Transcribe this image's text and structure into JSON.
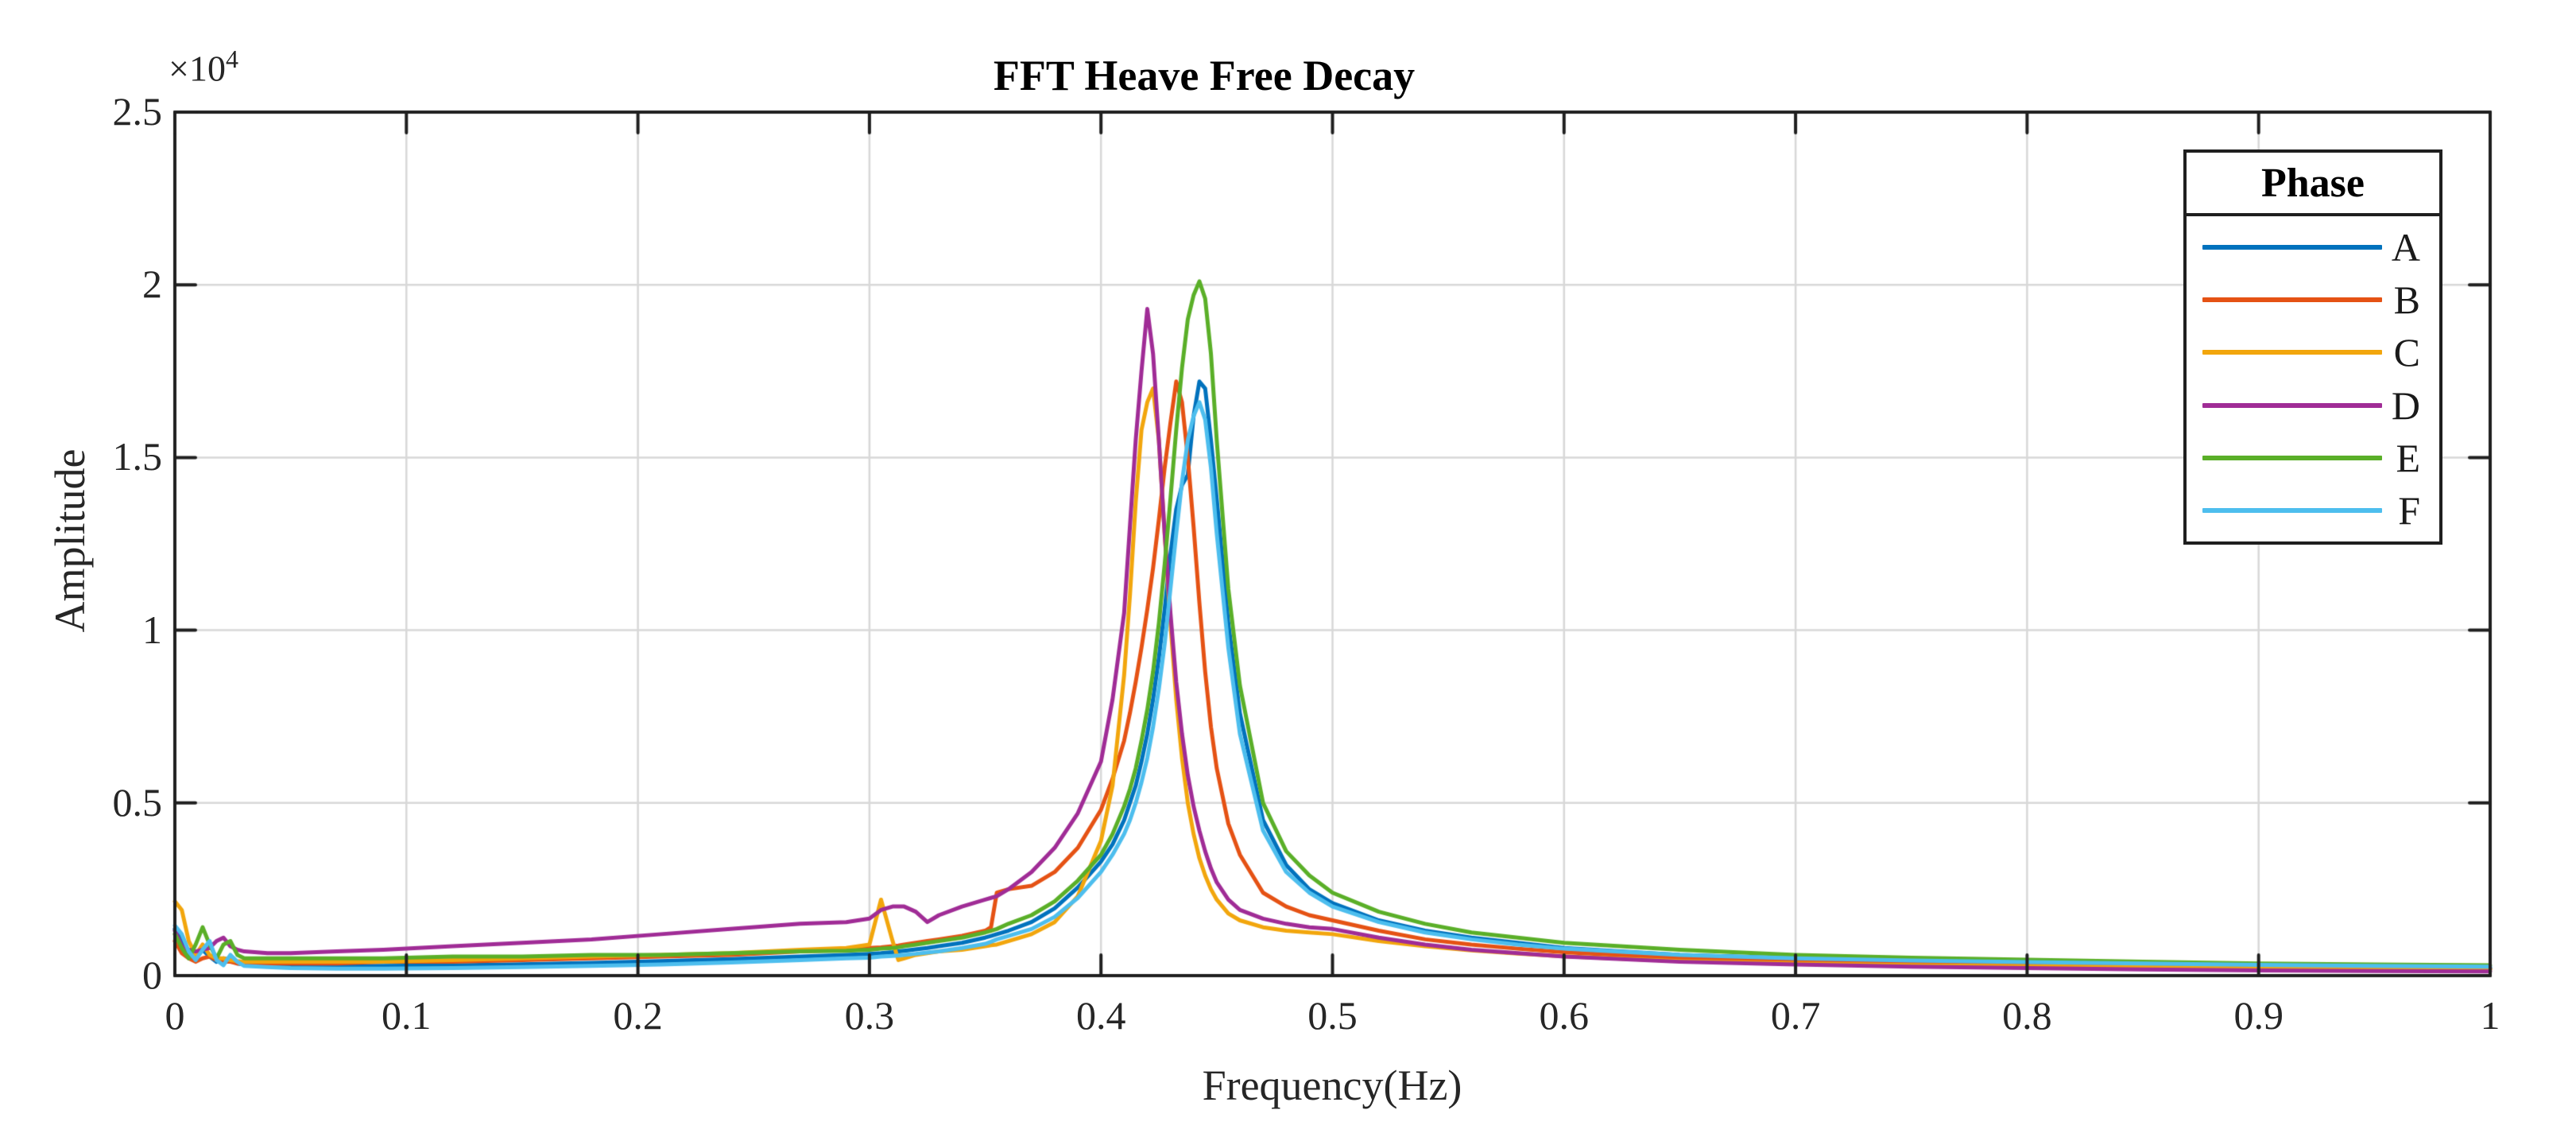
{
  "chart": {
    "title": "FFT Heave Free Decay",
    "xlabel": "Frequency(Hz)",
    "ylabel": "Amplitude",
    "y_exponent_base": "×10",
    "y_exponent_power": "4",
    "legend": {
      "title": "Phase"
    }
  },
  "chart_data": {
    "type": "line",
    "title": "FFT Heave Free Decay",
    "xlabel": "Frequency(Hz)",
    "ylabel": "Amplitude",
    "xlim": [
      0,
      1
    ],
    "ylim": [
      0,
      2.5
    ],
    "y_unit_multiplier": 10000,
    "y_multiplier_label": "×10⁴",
    "grid": true,
    "grid_color": "#d8d8d8",
    "axis_color": "#1f1f1f",
    "legend_position": "upper right",
    "legend_title": "Phase",
    "x_ticks": [
      0,
      0.1,
      0.2,
      0.3,
      0.4,
      0.5,
      0.6,
      0.7,
      0.8,
      0.9,
      1
    ],
    "x_tick_labels": [
      "0",
      "0.1",
      "0.2",
      "0.3",
      "0.4",
      "0.5",
      "0.6",
      "0.7",
      "0.8",
      "0.9",
      "1"
    ],
    "y_ticks": [
      0,
      0.5,
      1,
      1.5,
      2,
      2.5
    ],
    "y_tick_labels": [
      "0",
      "0.5",
      "1",
      "1.5",
      "2",
      "2.5"
    ],
    "x": [
      0,
      0.003,
      0.006,
      0.009,
      0.012,
      0.015,
      0.018,
      0.021,
      0.024,
      0.027,
      0.03,
      0.04,
      0.05,
      0.07,
      0.09,
      0.12,
      0.15,
      0.18,
      0.21,
      0.24,
      0.27,
      0.29,
      0.3,
      0.305,
      0.31,
      0.3125,
      0.315,
      0.32,
      0.325,
      0.33,
      0.34,
      0.35,
      0.3525,
      0.355,
      0.36,
      0.37,
      0.38,
      0.39,
      0.4,
      0.405,
      0.41,
      0.4125,
      0.415,
      0.4175,
      0.42,
      0.4225,
      0.425,
      0.4275,
      0.43,
      0.4325,
      0.435,
      0.4375,
      0.44,
      0.4425,
      0.445,
      0.4475,
      0.45,
      0.455,
      0.46,
      0.47,
      0.48,
      0.49,
      0.5,
      0.52,
      0.54,
      0.56,
      0.58,
      0.6,
      0.65,
      0.7,
      0.75,
      0.8,
      0.85,
      0.9,
      0.95,
      1.0
    ],
    "series": [
      {
        "name": "A",
        "color": "#0072BD",
        "peak": {
          "x": 0.4425,
          "y": 1.72
        },
        "values": [
          0.135,
          0.1,
          0.065,
          0.05,
          0.075,
          0.055,
          0.04,
          0.05,
          0.045,
          0.035,
          0.032,
          0.03,
          0.028,
          0.027,
          0.028,
          0.03,
          0.033,
          0.037,
          0.042,
          0.048,
          0.055,
          0.06,
          0.063,
          0.065,
          0.068,
          0.07,
          0.072,
          0.076,
          0.08,
          0.085,
          0.095,
          0.11,
          0.115,
          0.12,
          0.13,
          0.155,
          0.195,
          0.255,
          0.33,
          0.38,
          0.45,
          0.5,
          0.55,
          0.62,
          0.7,
          0.8,
          0.92,
          1.06,
          1.22,
          1.35,
          1.42,
          1.45,
          1.62,
          1.72,
          1.7,
          1.55,
          1.38,
          1.02,
          0.76,
          0.45,
          0.32,
          0.25,
          0.21,
          0.16,
          0.13,
          0.11,
          0.095,
          0.08,
          0.06,
          0.05,
          0.042,
          0.037,
          0.032,
          0.028,
          0.025,
          0.022
        ]
      },
      {
        "name": "B",
        "color": "#E55214",
        "peak": {
          "x": 0.4325,
          "y": 1.72
        },
        "values": [
          0.1,
          0.065,
          0.05,
          0.04,
          0.05,
          0.055,
          0.045,
          0.04,
          0.04,
          0.035,
          0.035,
          0.035,
          0.035,
          0.035,
          0.04,
          0.04,
          0.045,
          0.05,
          0.055,
          0.06,
          0.07,
          0.075,
          0.08,
          0.082,
          0.085,
          0.087,
          0.09,
          0.095,
          0.1,
          0.105,
          0.115,
          0.13,
          0.14,
          0.24,
          0.25,
          0.26,
          0.3,
          0.37,
          0.48,
          0.57,
          0.68,
          0.76,
          0.85,
          0.95,
          1.06,
          1.18,
          1.32,
          1.47,
          1.6,
          1.72,
          1.66,
          1.5,
          1.3,
          1.08,
          0.88,
          0.72,
          0.6,
          0.44,
          0.35,
          0.24,
          0.2,
          0.175,
          0.16,
          0.13,
          0.105,
          0.09,
          0.078,
          0.068,
          0.05,
          0.04,
          0.034,
          0.03,
          0.026,
          0.023,
          0.021,
          0.019
        ]
      },
      {
        "name": "C",
        "color": "#F2A60D",
        "peak": {
          "x": 0.4225,
          "y": 1.7
        },
        "values": [
          0.215,
          0.19,
          0.1,
          0.06,
          0.09,
          0.06,
          0.05,
          0.05,
          0.045,
          0.042,
          0.04,
          0.04,
          0.04,
          0.04,
          0.04,
          0.045,
          0.05,
          0.055,
          0.06,
          0.065,
          0.075,
          0.08,
          0.09,
          0.22,
          0.1,
          0.045,
          0.05,
          0.06,
          0.065,
          0.07,
          0.075,
          0.085,
          0.088,
          0.09,
          0.1,
          0.12,
          0.155,
          0.23,
          0.39,
          0.55,
          0.87,
          1.1,
          1.37,
          1.58,
          1.66,
          1.7,
          1.55,
          1.28,
          1.02,
          0.8,
          0.63,
          0.5,
          0.41,
          0.34,
          0.29,
          0.25,
          0.22,
          0.18,
          0.16,
          0.14,
          0.13,
          0.125,
          0.12,
          0.1,
          0.085,
          0.073,
          0.064,
          0.056,
          0.042,
          0.035,
          0.03,
          0.027,
          0.024,
          0.021,
          0.019,
          0.018
        ]
      },
      {
        "name": "D",
        "color": "#A02C96",
        "peak": {
          "x": 0.42,
          "y": 1.93
        },
        "values": [
          0.13,
          0.085,
          0.075,
          0.07,
          0.075,
          0.08,
          0.1,
          0.11,
          0.085,
          0.075,
          0.07,
          0.065,
          0.065,
          0.07,
          0.075,
          0.085,
          0.095,
          0.105,
          0.12,
          0.135,
          0.15,
          0.155,
          0.165,
          0.19,
          0.2,
          0.2,
          0.2,
          0.185,
          0.155,
          0.175,
          0.2,
          0.22,
          0.225,
          0.23,
          0.25,
          0.3,
          0.37,
          0.47,
          0.62,
          0.8,
          1.05,
          1.3,
          1.55,
          1.75,
          1.93,
          1.8,
          1.55,
          1.28,
          1.05,
          0.85,
          0.7,
          0.58,
          0.49,
          0.42,
          0.36,
          0.31,
          0.27,
          0.22,
          0.19,
          0.165,
          0.15,
          0.14,
          0.135,
          0.11,
          0.09,
          0.075,
          0.065,
          0.055,
          0.04,
          0.032,
          0.026,
          0.022,
          0.018,
          0.015,
          0.013,
          0.012
        ]
      },
      {
        "name": "E",
        "color": "#5AAF28",
        "peak": {
          "x": 0.4425,
          "y": 2.01
        },
        "values": [
          0.12,
          0.08,
          0.05,
          0.09,
          0.14,
          0.09,
          0.05,
          0.09,
          0.1,
          0.06,
          0.05,
          0.05,
          0.05,
          0.05,
          0.05,
          0.055,
          0.055,
          0.06,
          0.06,
          0.065,
          0.07,
          0.072,
          0.075,
          0.078,
          0.08,
          0.082,
          0.085,
          0.09,
          0.095,
          0.1,
          0.11,
          0.125,
          0.13,
          0.135,
          0.15,
          0.175,
          0.215,
          0.275,
          0.35,
          0.41,
          0.49,
          0.54,
          0.6,
          0.68,
          0.77,
          0.88,
          1.02,
          1.19,
          1.38,
          1.58,
          1.76,
          1.9,
          1.97,
          2.01,
          1.96,
          1.8,
          1.55,
          1.12,
          0.84,
          0.5,
          0.36,
          0.29,
          0.24,
          0.185,
          0.15,
          0.125,
          0.11,
          0.095,
          0.075,
          0.06,
          0.052,
          0.046,
          0.04,
          0.035,
          0.032,
          0.03
        ]
      },
      {
        "name": "F",
        "color": "#4DBEEE",
        "peak": {
          "x": 0.4425,
          "y": 1.66
        },
        "values": [
          0.145,
          0.12,
          0.07,
          0.045,
          0.075,
          0.1,
          0.045,
          0.03,
          0.06,
          0.04,
          0.028,
          0.025,
          0.022,
          0.02,
          0.02,
          0.022,
          0.025,
          0.028,
          0.032,
          0.038,
          0.045,
          0.05,
          0.052,
          0.055,
          0.057,
          0.058,
          0.06,
          0.063,
          0.067,
          0.07,
          0.08,
          0.092,
          0.098,
          0.105,
          0.115,
          0.135,
          0.17,
          0.225,
          0.3,
          0.35,
          0.41,
          0.45,
          0.5,
          0.56,
          0.63,
          0.72,
          0.83,
          0.96,
          1.12,
          1.28,
          1.43,
          1.55,
          1.62,
          1.66,
          1.61,
          1.47,
          1.28,
          0.95,
          0.7,
          0.42,
          0.3,
          0.24,
          0.2,
          0.155,
          0.125,
          0.105,
          0.09,
          0.078,
          0.06,
          0.05,
          0.044,
          0.039,
          0.035,
          0.031,
          0.028,
          0.026
        ]
      }
    ]
  }
}
